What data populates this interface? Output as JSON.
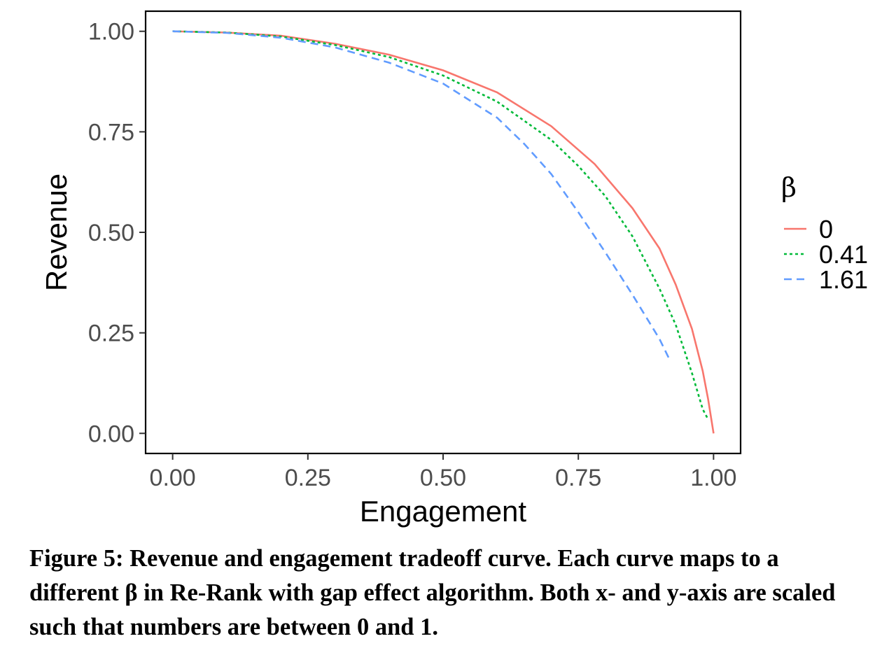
{
  "chart_data": {
    "type": "line",
    "xlabel": "Engagement",
    "ylabel": "Revenue",
    "xlim": [
      -0.05,
      1.05
    ],
    "ylim": [
      -0.05,
      1.05
    ],
    "x_ticks": [
      "0.00",
      "0.25",
      "0.50",
      "0.75",
      "1.00"
    ],
    "y_ticks": [
      "0.00",
      "0.25",
      "0.50",
      "0.75",
      "1.00"
    ],
    "grid": false,
    "legend_position": "right",
    "legend_title": "β",
    "series": [
      {
        "name": "0",
        "color": "#F8766D",
        "dash": "solid",
        "x": [
          0.0,
          0.1,
          0.2,
          0.3,
          0.4,
          0.5,
          0.6,
          0.7,
          0.78,
          0.85,
          0.9,
          0.93,
          0.96,
          0.98,
          0.99,
          1.0
        ],
        "y": [
          1.0,
          0.997,
          0.989,
          0.969,
          0.942,
          0.903,
          0.848,
          0.764,
          0.67,
          0.56,
          0.46,
          0.37,
          0.26,
          0.155,
          0.085,
          0.0
        ]
      },
      {
        "name": "0.41",
        "color": "#00BA38",
        "dash": "dotted",
        "x": [
          0.0,
          0.1,
          0.2,
          0.3,
          0.4,
          0.5,
          0.6,
          0.7,
          0.75,
          0.8,
          0.85,
          0.9,
          0.93,
          0.96,
          0.98,
          0.99
        ],
        "y": [
          1.0,
          0.997,
          0.987,
          0.966,
          0.936,
          0.89,
          0.825,
          0.73,
          0.665,
          0.59,
          0.49,
          0.36,
          0.27,
          0.15,
          0.06,
          0.035
        ]
      },
      {
        "name": "1.61",
        "color": "#619CFF",
        "dash": "dashed",
        "x": [
          0.0,
          0.1,
          0.2,
          0.3,
          0.4,
          0.5,
          0.6,
          0.65,
          0.7,
          0.75,
          0.8,
          0.85,
          0.9,
          0.92
        ],
        "y": [
          1.0,
          0.996,
          0.984,
          0.96,
          0.922,
          0.87,
          0.785,
          0.72,
          0.645,
          0.55,
          0.45,
          0.345,
          0.235,
          0.18
        ]
      }
    ]
  },
  "caption": "Figure 5: Revenue and engagement tradeoff curve. Each curve maps to a different β in Re-Rank with gap effect algorithm. Both x- and y-axis are scaled such that numbers are between 0 and 1."
}
